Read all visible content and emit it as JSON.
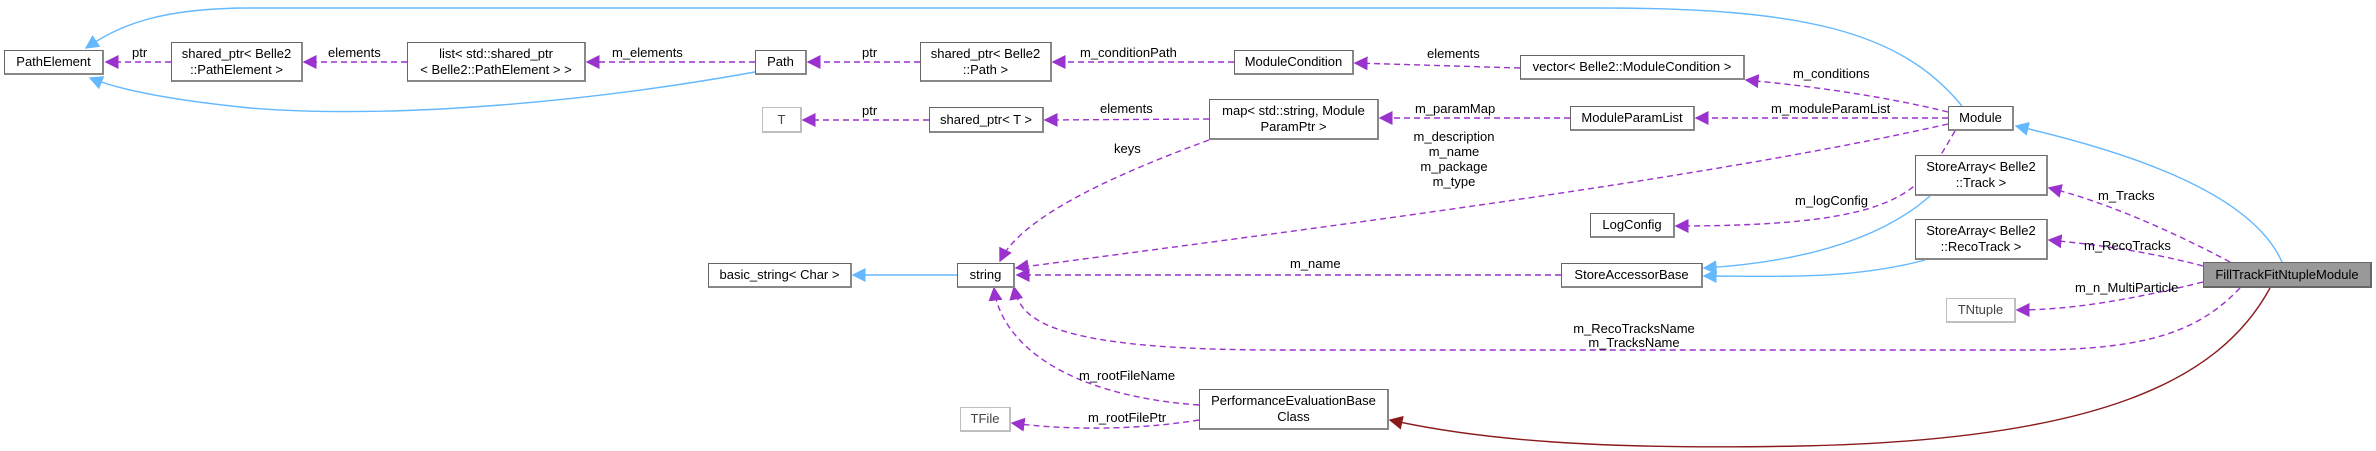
{
  "nodes": {
    "path_element": "PathElement",
    "shared_ptr_path_element": [
      "shared_ptr< Belle2",
      "::PathElement >"
    ],
    "list_shared_ptr": [
      "list< std::shared_ptr",
      "< Belle2::PathElement > >"
    ],
    "path": "Path",
    "shared_ptr_path": [
      "shared_ptr< Belle2",
      "::Path >"
    ],
    "module_condition": "ModuleCondition",
    "vector_module_condition": "vector< Belle2::ModuleCondition >",
    "module": "Module",
    "t": "T",
    "shared_ptr_t": "shared_ptr< T >",
    "map_param": [
      "map< std::string, Module",
      "ParamPtr >"
    ],
    "module_param_list": "ModuleParamList",
    "log_config": "LogConfig",
    "store_array_track": [
      "StoreArray< Belle2",
      "::Track >"
    ],
    "store_array_recotrack": [
      "StoreArray< Belle2",
      "::RecoTrack >"
    ],
    "store_accessor_base": "StoreAccessorBase",
    "string": "string",
    "basic_string": "basic_string< Char >",
    "fill_track": "FillTrackFitNtupleModule",
    "tntuple": "TNtuple",
    "perf_eval": [
      "PerformanceEvaluationBase",
      "Class"
    ],
    "tfile": "TFile"
  },
  "edges": {
    "ptr1": "ptr",
    "elements1": "elements",
    "m_elements": "m_elements",
    "ptr2": "ptr",
    "m_conditionPath": "m_conditionPath",
    "elements2": "elements",
    "m_conditions": "m_conditions",
    "m_moduleParamList": "m_moduleParamList",
    "m_paramMap": "m_paramMap",
    "elements3": "elements",
    "ptr3": "ptr",
    "keys": "keys",
    "module_strings": [
      "m_description",
      "m_name",
      "m_package",
      "m_type"
    ],
    "m_logConfig": "m_logConfig",
    "m_name": "m_name",
    "m_Tracks": "m_Tracks",
    "m_RecoTracks": "m_RecoTracks",
    "m_n_MultiParticle": "m_n_MultiParticle",
    "names": [
      "m_RecoTracksName",
      "m_TracksName"
    ],
    "m_rootFileName": "m_rootFileName",
    "m_rootFilePtr": "m_rootFilePtr"
  },
  "colors": {
    "usage_edge": "#9a32cd",
    "inheritance_edge": "#63b8ff",
    "protected_inheritance_edge": "#8b1a1a",
    "focus_node_fill": "#999999"
  }
}
